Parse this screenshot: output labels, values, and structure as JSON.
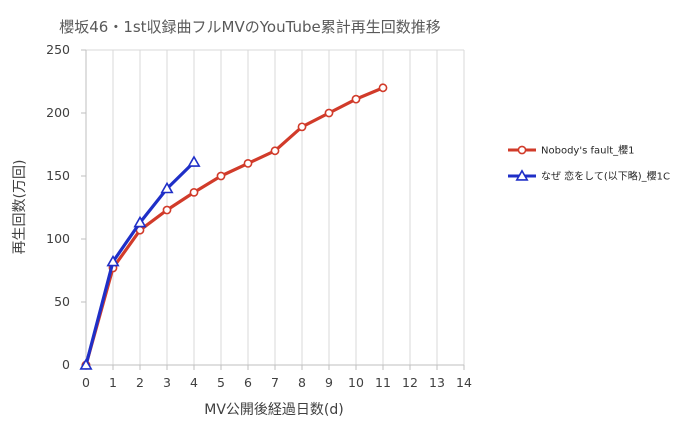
{
  "chart_data": {
    "type": "line",
    "title": "櫻坂46・1st収録曲フルMVのYouTube累計再生回数推移",
    "xlabel": "MV公開後経過日数(d)",
    "ylabel": "再生回数(万回)",
    "xlim": [
      0,
      14
    ],
    "ylim": [
      0,
      250
    ],
    "xticks": [
      "0",
      "1",
      "2",
      "3",
      "4",
      "5",
      "6",
      "7",
      "8",
      "9",
      "10",
      "11",
      "12",
      "13",
      "14"
    ],
    "yticks": [
      "0",
      "50",
      "100",
      "150",
      "200",
      "250"
    ],
    "grid": "vertical",
    "legend_position": "right",
    "series": [
      {
        "name": "Nobody's fault_櫻1",
        "color": "#D13B2A",
        "marker": "circle",
        "x": [
          0,
          1,
          2,
          3,
          4,
          5,
          6,
          7,
          8,
          9,
          10,
          11
        ],
        "values": [
          0,
          77,
          107,
          123,
          137,
          150,
          160,
          170,
          189,
          200,
          211,
          220
        ]
      },
      {
        "name": "なぜ 恋をして(以下略)_櫻1C",
        "color": "#1F2FC7",
        "marker": "triangle",
        "x": [
          0,
          1,
          2,
          3,
          4
        ],
        "values": [
          0,
          82,
          113,
          140,
          161
        ]
      }
    ]
  }
}
